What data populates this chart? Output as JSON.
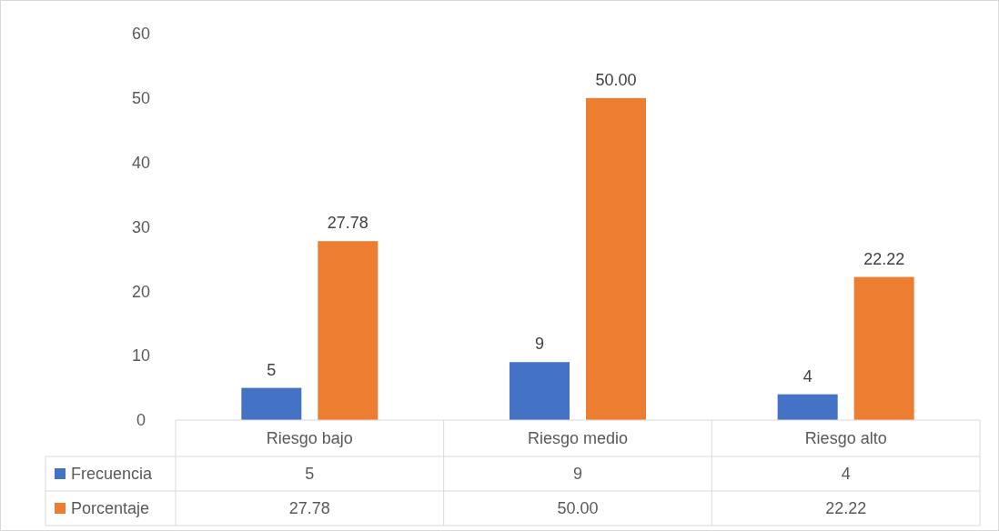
{
  "chart_data": {
    "type": "bar",
    "categories": [
      "Riesgo bajo",
      "Riesgo medio",
      "Riesgo alto"
    ],
    "series": [
      {
        "name": "Frecuencia",
        "color": "#4472c4",
        "values": [
          5,
          9,
          4
        ],
        "value_labels": [
          "5",
          "9",
          "4"
        ]
      },
      {
        "name": "Porcentaje",
        "color": "#ed7d31",
        "values": [
          27.78,
          50,
          22.22
        ],
        "value_labels": [
          "27.78",
          "50.00",
          "22.22"
        ]
      }
    ],
    "ylim": [
      0,
      60
    ],
    "yticks": [
      0,
      10,
      20,
      30,
      40,
      50,
      60
    ],
    "grid": false,
    "legend": "bottom"
  }
}
